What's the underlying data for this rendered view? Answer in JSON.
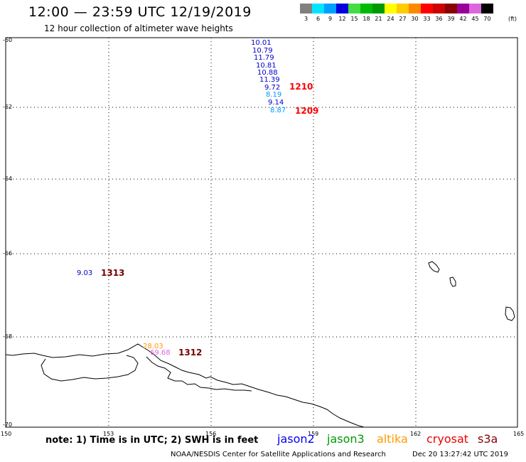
{
  "header": {
    "title": "12:00 — 23:59 UTC 12/19/2019",
    "subtitle": "12 hour collection of altimeter wave heights"
  },
  "legend": {
    "unit": "(ft)",
    "scale": [
      {
        "label": "3",
        "color": "#808080"
      },
      {
        "label": "6",
        "color": "#00e5ff"
      },
      {
        "label": "9",
        "color": "#00a0ff"
      },
      {
        "label": "12",
        "color": "#0000dd"
      },
      {
        "label": "15",
        "color": "#44dd44"
      },
      {
        "label": "18",
        "color": "#00bb00"
      },
      {
        "label": "21",
        "color": "#009900"
      },
      {
        "label": "24",
        "color": "#ffff00"
      },
      {
        "label": "27",
        "color": "#ffcc00"
      },
      {
        "label": "30",
        "color": "#ff8800"
      },
      {
        "label": "33",
        "color": "#ff0000"
      },
      {
        "label": "36",
        "color": "#cc0000"
      },
      {
        "label": "39",
        "color": "#880000"
      },
      {
        "label": "42",
        "color": "#990099"
      },
      {
        "label": "45",
        "color": "#dd66dd"
      },
      {
        "label": "70",
        "color": "#000000"
      }
    ]
  },
  "axes": {
    "lat_labels": [
      "-60",
      "-62",
      "-64",
      "-66",
      "-68",
      "-70"
    ],
    "lon_labels": [
      "150",
      "153",
      "156",
      "159",
      "162",
      "165"
    ]
  },
  "observations": [
    {
      "value": "10.01",
      "color": "#0000cc"
    },
    {
      "value": "10.79",
      "color": "#0000cc"
    },
    {
      "value": "11.79",
      "color": "#0000cc"
    },
    {
      "value": "10.81",
      "color": "#0000cc"
    },
    {
      "value": "10.88",
      "color": "#0000cc"
    },
    {
      "value": "11.39",
      "color": "#0000cc"
    },
    {
      "value": "9.72",
      "color": "#0000cc"
    },
    {
      "value": "8.19",
      "color": "#0099ff"
    },
    {
      "value": "9.14",
      "color": "#0000cc"
    },
    {
      "value": "8.87",
      "color": "#0099ff"
    },
    {
      "value": "9.03",
      "color": "#0000cc"
    },
    {
      "value": "28.03",
      "color": "#ff9900"
    },
    {
      "value": "69.68",
      "color": "#dd66dd"
    }
  ],
  "track_times": [
    {
      "label": "1210",
      "color": "#ff0000"
    },
    {
      "label": "1209",
      "color": "#ff0000"
    },
    {
      "label": "1313",
      "color": "#770000"
    },
    {
      "label": "1312",
      "color": "#770000"
    }
  ],
  "footer": {
    "note": "note:  1) Time is in UTC;  2) SWH is in feet",
    "satellites": [
      {
        "name": "jason2",
        "color": "#0000ee"
      },
      {
        "name": "jason3",
        "color": "#009900"
      },
      {
        "name": "altika",
        "color": "#ff9900"
      },
      {
        "name": "cryosat",
        "color": "#ee0000"
      },
      {
        "name": "s3a",
        "color": "#880000"
      }
    ],
    "credit": "NOAA/NESDIS Center for Satellite Applications and Research",
    "timestamp": "Dec 20 13:27:42 UTC 2019"
  }
}
